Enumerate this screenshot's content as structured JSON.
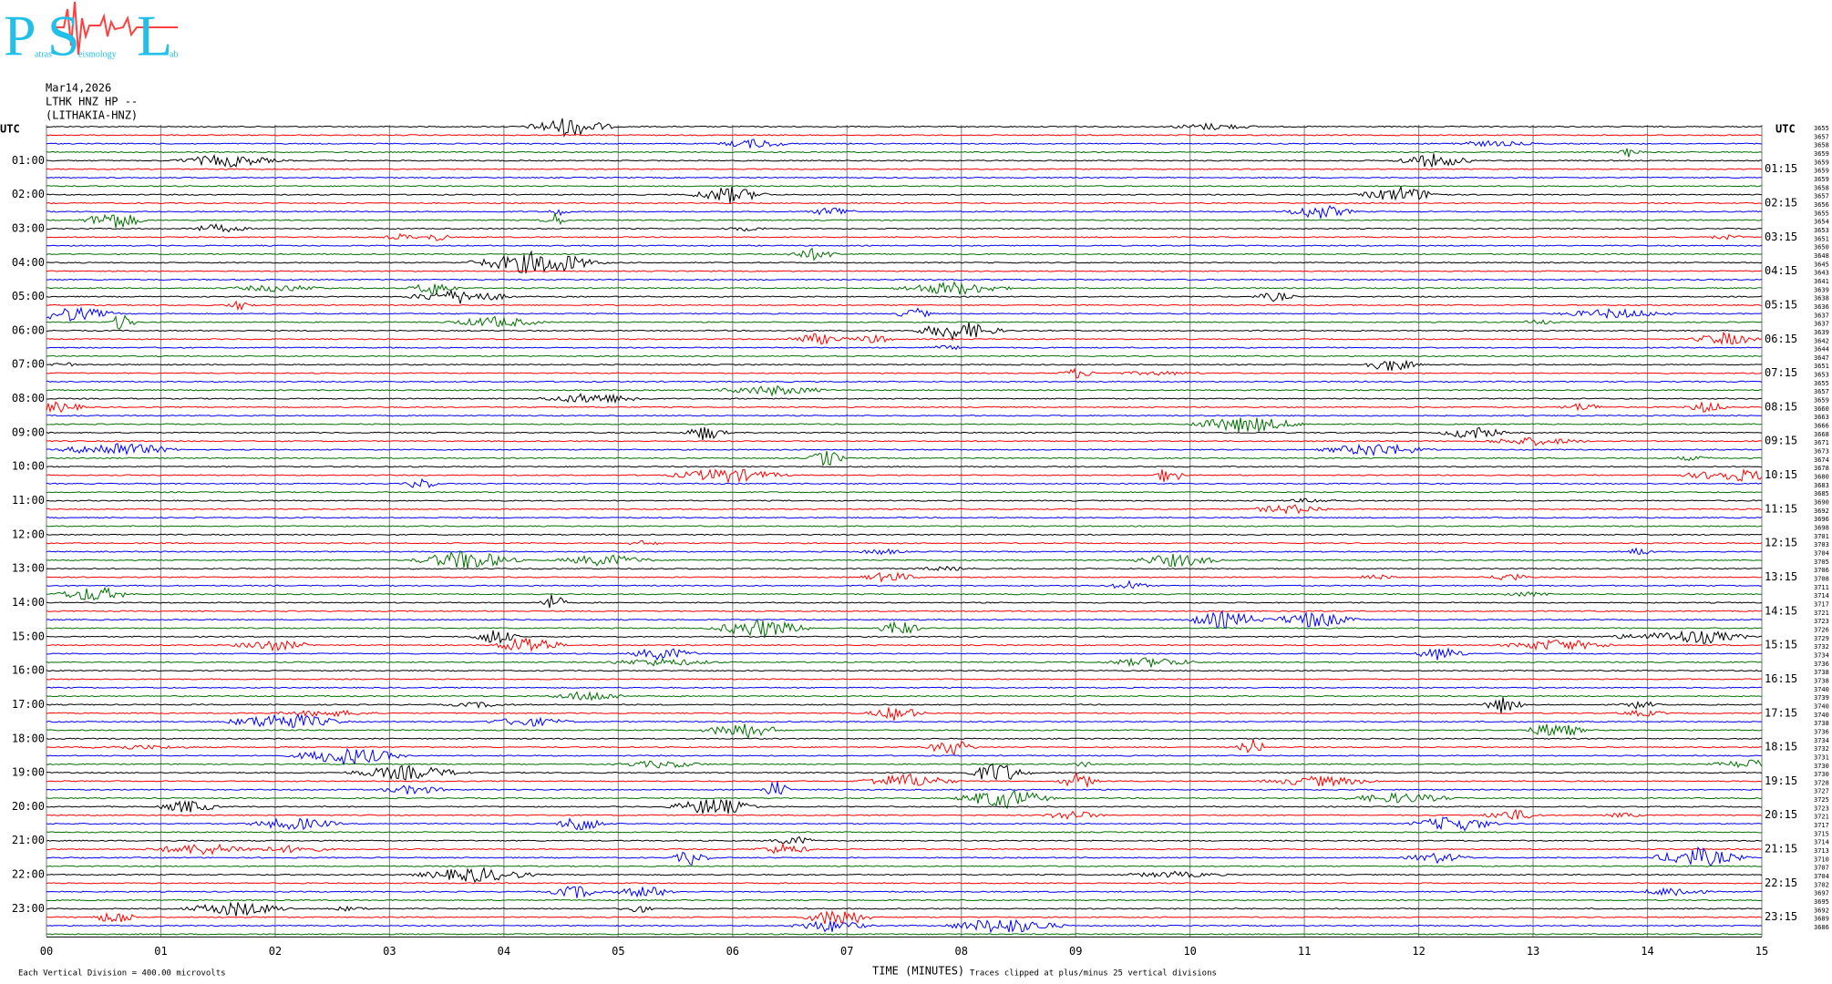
{
  "chart_data": {
    "type": "helicorder",
    "logo": {
      "letters": [
        "P",
        "S",
        "L"
      ],
      "words": [
        "atras",
        "eismology",
        "ab"
      ]
    },
    "title_lines": [
      "Mar14,2026",
      "LTHK HNZ HP --",
      "(LITHAKIA-HNZ)"
    ],
    "left_timezone": "UTC",
    "right_timezone": "UTC",
    "left_labels": [
      "01:00",
      "02:00",
      "03:00",
      "04:00",
      "05:00",
      "06:00",
      "07:00",
      "08:00",
      "09:00",
      "10:00",
      "11:00",
      "12:00",
      "13:00",
      "14:00",
      "15:00",
      "16:00",
      "17:00",
      "18:00",
      "19:00",
      "20:00",
      "21:00",
      "22:00",
      "23:00"
    ],
    "right_labels": [
      "01:15",
      "02:15",
      "03:15",
      "04:15",
      "05:15",
      "06:15",
      "07:15",
      "08:15",
      "09:15",
      "10:15",
      "11:15",
      "12:15",
      "13:15",
      "14:15",
      "15:15",
      "16:15",
      "17:15",
      "18:15",
      "19:15",
      "20:15",
      "21:15",
      "22:15",
      "23:15"
    ],
    "row_values": [
      3655,
      3657,
      3658,
      3659,
      3659,
      3659,
      3659,
      3658,
      3657,
      3656,
      3655,
      3654,
      3653,
      3651,
      3650,
      3648,
      3645,
      3643,
      3641,
      3639,
      3638,
      3636,
      3637,
      3637,
      3639,
      3642,
      3644,
      3647,
      3651,
      3653,
      3655,
      3657,
      3659,
      3660,
      3663,
      3666,
      3668,
      3671,
      3673,
      3674,
      3678,
      3680,
      3683,
      3685,
      3690,
      3692,
      3696,
      3698,
      3701,
      3703,
      3704,
      3705,
      3706,
      3708,
      3711,
      3714,
      3717,
      3721,
      3723,
      3726,
      3729,
      3732,
      3734,
      3736,
      3738,
      3738,
      3740,
      3739,
      3740,
      3740,
      3738,
      3736,
      3734,
      3732,
      3731,
      3730,
      3730,
      3728,
      3727,
      3725,
      3723,
      3721,
      3717,
      3715,
      3714,
      3713,
      3710,
      3707,
      3704,
      3702,
      3697,
      3695,
      3692,
      3689,
      3686
    ],
    "trace_colors": [
      "#000000",
      "#ff0000",
      "#0000ff",
      "#007000"
    ],
    "xlabel": "TIME (MINUTES)",
    "xlim": [
      0,
      15
    ],
    "xticks": [
      {
        "value": 0,
        "label": "00"
      },
      {
        "value": 1,
        "label": "01"
      },
      {
        "value": 2,
        "label": "02"
      },
      {
        "value": 3,
        "label": "03"
      },
      {
        "value": 4,
        "label": "04"
      },
      {
        "value": 5,
        "label": "05"
      },
      {
        "value": 6,
        "label": "06"
      },
      {
        "value": 7,
        "label": "07"
      },
      {
        "value": 8,
        "label": "08"
      },
      {
        "value": 9,
        "label": "09"
      },
      10,
      11,
      12,
      13,
      14,
      15
    ],
    "grid": true,
    "scale_note": "Each Vertical Division =  400.00 microvolts",
    "clip_note": "Traces clipped at plus/minus 25 vertical divisions"
  }
}
